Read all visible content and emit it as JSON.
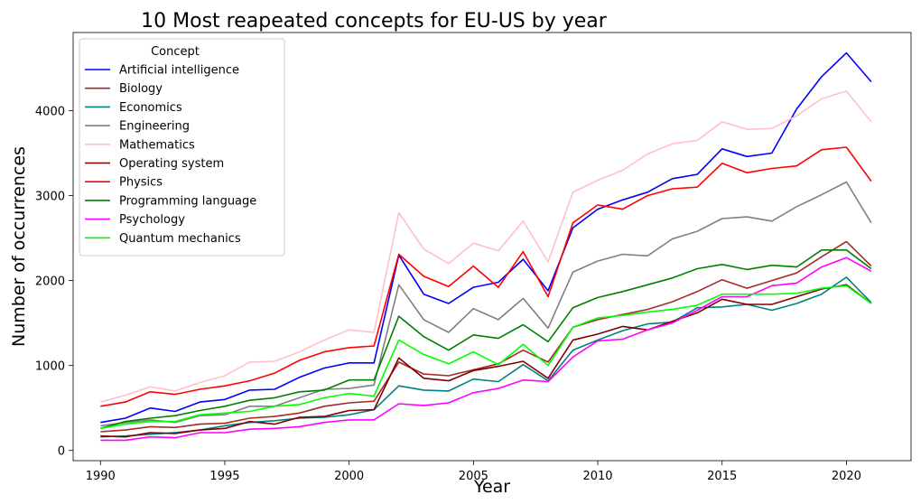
{
  "chart_data": {
    "type": "line",
    "title": "10 Most reapeated concepts for EU-US by year",
    "xlabel": "Year",
    "ylabel": "Number of occurrences",
    "xlim": [
      1988.9,
      2022.6
    ],
    "ylim": [
      -120,
      4920
    ],
    "xticks": [
      1990,
      1995,
      2000,
      2005,
      2010,
      2015,
      2020
    ],
    "yticks": [
      0,
      1000,
      2000,
      3000,
      4000
    ],
    "grid": false,
    "legend": {
      "title": "Concept",
      "position": "top-left"
    },
    "x": [
      1990,
      1991,
      1992,
      1993,
      1994,
      1995,
      1996,
      1997,
      1998,
      1999,
      2000,
      2001,
      2002,
      2003,
      2004,
      2005,
      2006,
      2007,
      2008,
      2009,
      2010,
      2011,
      2012,
      2013,
      2014,
      2015,
      2016,
      2017,
      2018,
      2019,
      2020,
      2021
    ],
    "series": [
      {
        "name": "Artificial intelligence",
        "color": "#0000ff",
        "values": [
          330,
          380,
          500,
          460,
          570,
          600,
          710,
          720,
          860,
          970,
          1030,
          1030,
          2300,
          1840,
          1730,
          1920,
          1980,
          2250,
          1880,
          2620,
          2840,
          2950,
          3040,
          3200,
          3250,
          3550,
          3460,
          3500,
          4020,
          4400,
          4680,
          4340
        ]
      },
      {
        "name": "Biology",
        "color": "#a52a2a",
        "values": [
          220,
          240,
          280,
          270,
          310,
          320,
          380,
          400,
          440,
          520,
          560,
          580,
          1040,
          900,
          880,
          950,
          1020,
          1180,
          1040,
          1450,
          1540,
          1600,
          1660,
          1750,
          1870,
          2010,
          1910,
          2000,
          2090,
          2280,
          2460,
          2170
        ]
      },
      {
        "name": "Economics",
        "color": "#008080",
        "values": [
          160,
          170,
          190,
          210,
          240,
          290,
          330,
          350,
          380,
          390,
          420,
          480,
          760,
          710,
          700,
          840,
          810,
          1010,
          820,
          1180,
          1300,
          1410,
          1490,
          1510,
          1680,
          1690,
          1720,
          1650,
          1730,
          1840,
          2040,
          1740
        ]
      },
      {
        "name": "Engineering",
        "color": "#808080",
        "values": [
          290,
          330,
          360,
          330,
          410,
          420,
          520,
          520,
          620,
          720,
          730,
          770,
          1950,
          1540,
          1390,
          1670,
          1540,
          1790,
          1440,
          2100,
          2230,
          2310,
          2290,
          2490,
          2580,
          2730,
          2750,
          2700,
          2870,
          3010,
          3160,
          2680
        ]
      },
      {
        "name": "Mathematics",
        "color": "#ffc0cb",
        "values": [
          570,
          650,
          750,
          700,
          800,
          880,
          1040,
          1050,
          1160,
          1300,
          1420,
          1390,
          2800,
          2370,
          2200,
          2440,
          2350,
          2700,
          2220,
          3040,
          3180,
          3300,
          3490,
          3610,
          3650,
          3870,
          3780,
          3790,
          3940,
          4140,
          4230,
          3870
        ]
      },
      {
        "name": "Operating system",
        "color": "#800000",
        "values": [
          170,
          160,
          210,
          200,
          240,
          260,
          340,
          310,
          390,
          400,
          470,
          480,
          1090,
          850,
          820,
          940,
          990,
          1050,
          850,
          1300,
          1370,
          1460,
          1420,
          1520,
          1620,
          1780,
          1720,
          1720,
          1810,
          1900,
          1950,
          1730
        ]
      },
      {
        "name": "Physics",
        "color": "#ff0000",
        "values": [
          520,
          570,
          690,
          660,
          720,
          760,
          820,
          910,
          1060,
          1160,
          1210,
          1230,
          2310,
          2050,
          1930,
          2170,
          1920,
          2340,
          1810,
          2680,
          2890,
          2840,
          3000,
          3080,
          3100,
          3380,
          3270,
          3320,
          3350,
          3540,
          3570,
          3170
        ]
      },
      {
        "name": "Programming language",
        "color": "#008000",
        "values": [
          260,
          340,
          380,
          410,
          470,
          520,
          590,
          620,
          690,
          710,
          830,
          830,
          1580,
          1340,
          1180,
          1360,
          1320,
          1480,
          1280,
          1680,
          1800,
          1870,
          1950,
          2030,
          2140,
          2190,
          2130,
          2180,
          2160,
          2360,
          2360,
          2140
        ]
      },
      {
        "name": "Psychology",
        "color": "#ff00ff",
        "values": [
          120,
          120,
          160,
          150,
          210,
          210,
          250,
          260,
          280,
          330,
          360,
          360,
          550,
          530,
          560,
          680,
          730,
          830,
          810,
          1100,
          1290,
          1310,
          1420,
          1500,
          1650,
          1810,
          1810,
          1940,
          1970,
          2160,
          2270,
          2110
        ]
      },
      {
        "name": "Quantum mechanics",
        "color": "#00ff00",
        "values": [
          260,
          310,
          340,
          340,
          420,
          440,
          460,
          520,
          540,
          620,
          670,
          640,
          1300,
          1130,
          1020,
          1160,
          1010,
          1250,
          1000,
          1450,
          1560,
          1590,
          1630,
          1660,
          1710,
          1840,
          1840,
          1840,
          1850,
          1910,
          1940,
          1730
        ]
      }
    ]
  }
}
